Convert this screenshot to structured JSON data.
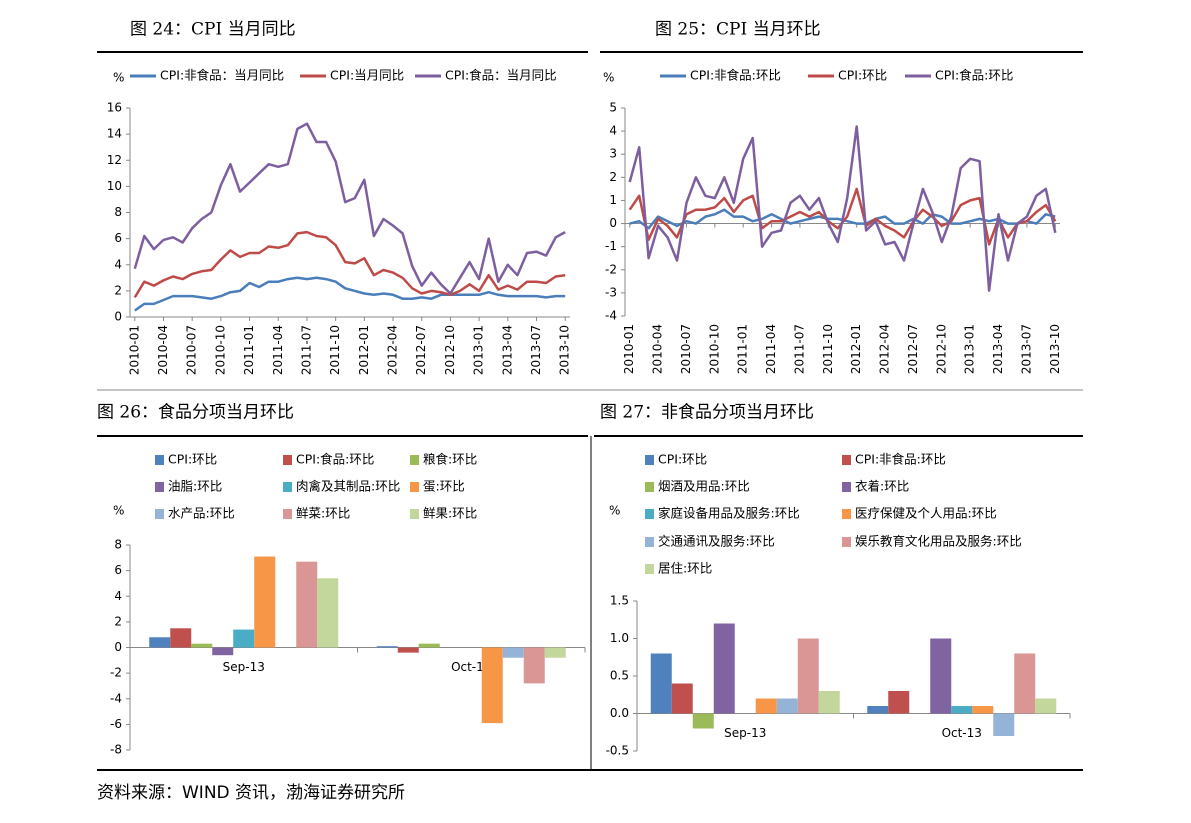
{
  "chart_data": [
    {
      "type": "line",
      "title": "图 24：CPI 当月同比",
      "ylabel": "%",
      "ylim": [
        0,
        16
      ],
      "yticks": [
        0,
        2,
        4,
        6,
        8,
        10,
        12,
        14,
        16
      ],
      "categories": [
        "2010-01",
        null,
        null,
        "2010-04",
        null,
        null,
        "2010-07",
        null,
        null,
        "2010-10",
        null,
        null,
        "2011-01",
        null,
        null,
        "2011-04",
        null,
        null,
        "2011-07",
        null,
        null,
        "2011-10",
        null,
        null,
        "2012-01",
        null,
        null,
        "2012-04",
        null,
        null,
        "2012-07",
        null,
        null,
        "2012-10",
        null,
        null,
        "2013-01",
        null,
        null,
        "2013-04",
        null,
        null,
        "2013-07",
        null,
        null,
        "2013-10"
      ],
      "series": [
        {
          "name": "CPI:非食品：当月同比",
          "color": "#4a7ebb",
          "values": [
            0.5,
            1.0,
            1.0,
            1.3,
            1.6,
            1.6,
            1.6,
            1.5,
            1.4,
            1.6,
            1.9,
            2.0,
            2.6,
            2.3,
            2.7,
            2.7,
            2.9,
            3.0,
            2.9,
            3.0,
            2.9,
            2.7,
            2.2,
            2.0,
            1.8,
            1.7,
            1.8,
            1.7,
            1.4,
            1.4,
            1.5,
            1.4,
            1.7,
            1.7,
            1.7,
            1.7,
            1.7,
            1.9,
            1.7,
            1.6,
            1.6,
            1.6,
            1.6,
            1.5,
            1.6,
            1.6
          ]
        },
        {
          "name": "CPI:当月同比",
          "color": "#be4b48",
          "values": [
            1.5,
            2.7,
            2.4,
            2.8,
            3.1,
            2.9,
            3.3,
            3.5,
            3.6,
            4.4,
            5.1,
            4.6,
            4.9,
            4.9,
            5.4,
            5.3,
            5.5,
            6.4,
            6.5,
            6.2,
            6.1,
            5.5,
            4.2,
            4.1,
            4.5,
            3.2,
            3.6,
            3.4,
            3.0,
            2.2,
            1.8,
            2.0,
            1.9,
            1.7,
            2.0,
            2.5,
            2.0,
            3.2,
            2.1,
            2.4,
            2.1,
            2.7,
            2.7,
            2.6,
            3.1,
            3.2
          ]
        },
        {
          "name": "CPI:食品：当月同比",
          "color": "#7d5fa0",
          "values": [
            3.7,
            6.2,
            5.2,
            5.9,
            6.1,
            5.7,
            6.8,
            7.5,
            8.0,
            10.1,
            11.7,
            9.6,
            10.3,
            11.0,
            11.7,
            11.5,
            11.7,
            14.4,
            14.8,
            13.4,
            13.4,
            11.9,
            8.8,
            9.1,
            10.5,
            6.2,
            7.5,
            7.0,
            6.4,
            3.9,
            2.4,
            3.4,
            2.5,
            1.8,
            3.0,
            4.2,
            2.9,
            6.0,
            2.7,
            4.0,
            3.2,
            4.9,
            5.0,
            4.7,
            6.1,
            6.5
          ]
        }
      ]
    },
    {
      "type": "line",
      "title": "图 25：CPI 当月环比",
      "ylabel": "%",
      "ylim": [
        -4,
        5
      ],
      "yticks": [
        -4,
        -3,
        -2,
        -1,
        0,
        1,
        2,
        3,
        4,
        5
      ],
      "categories": [
        "2010-01",
        null,
        null,
        "2010-04",
        null,
        null,
        "2010-07",
        null,
        null,
        "2010-10",
        null,
        null,
        "2011-01",
        null,
        null,
        "2011-04",
        null,
        null,
        "2011-07",
        null,
        null,
        "2011-10",
        null,
        null,
        "2012-01",
        null,
        null,
        "2012-04",
        null,
        null,
        "2012-07",
        null,
        null,
        "2012-10",
        null,
        null,
        "2013-01",
        null,
        null,
        "2013-04",
        null,
        null,
        "2013-07",
        null,
        null,
        "2013-10"
      ],
      "series": [
        {
          "name": "CPI:非食品:环比",
          "color": "#4a7ebb",
          "values": [
            0.0,
            0.1,
            -0.2,
            0.3,
            0.1,
            -0.1,
            0.1,
            0.0,
            0.3,
            0.4,
            0.6,
            0.3,
            0.3,
            0.1,
            0.2,
            0.4,
            0.2,
            0.0,
            0.1,
            0.2,
            0.3,
            0.2,
            0.2,
            0.1,
            0.0,
            0.0,
            0.2,
            0.3,
            0.0,
            0.0,
            0.2,
            0.0,
            0.4,
            0.3,
            0.0,
            0.0,
            0.1,
            0.2,
            0.1,
            0.2,
            0.0,
            0.0,
            0.1,
            0.0,
            0.4,
            0.3
          ]
        },
        {
          "name": "CPI:环比",
          "color": "#be4b48",
          "values": [
            0.6,
            1.2,
            -0.7,
            0.2,
            -0.1,
            -0.6,
            0.4,
            0.6,
            0.6,
            0.7,
            1.1,
            0.5,
            1.0,
            1.2,
            -0.2,
            0.1,
            0.1,
            0.3,
            0.5,
            0.3,
            0.5,
            0.1,
            -0.2,
            0.3,
            1.5,
            -0.1,
            0.2,
            -0.1,
            -0.3,
            -0.6,
            0.1,
            0.6,
            0.3,
            -0.1,
            0.1,
            0.8,
            1.0,
            1.1,
            -0.9,
            0.2,
            -0.6,
            0.0,
            0.1,
            0.5,
            0.8,
            0.1
          ]
        },
        {
          "name": "CPI:食品:环比",
          "color": "#7d5fa0",
          "values": [
            1.8,
            3.3,
            -1.5,
            -0.1,
            -0.6,
            -1.6,
            0.9,
            2.0,
            1.2,
            1.1,
            2.0,
            0.9,
            2.8,
            3.7,
            -1.0,
            -0.4,
            -0.3,
            0.9,
            1.2,
            0.6,
            1.1,
            0.0,
            -0.8,
            1.1,
            4.2,
            -0.3,
            0.1,
            -0.9,
            -0.8,
            -1.6,
            0.0,
            1.5,
            0.5,
            -0.8,
            0.3,
            2.4,
            2.8,
            2.7,
            -2.9,
            0.4,
            -1.6,
            0.0,
            0.3,
            1.2,
            1.5,
            -0.4
          ]
        }
      ]
    },
    {
      "type": "bar",
      "title": "图 26：食品分项当月环比",
      "ylabel": "%",
      "ylim": [
        -8,
        8
      ],
      "yticks": [
        -8,
        -6,
        -4,
        -2,
        0,
        2,
        4,
        6,
        8
      ],
      "categories": [
        "Sep-13",
        "Oct-13"
      ],
      "series": [
        {
          "name": "CPI:环比",
          "color": "#4f81bd",
          "values": [
            0.8,
            0.1
          ]
        },
        {
          "name": "CPI:食品:环比",
          "color": "#c0504d",
          "values": [
            1.5,
            -0.4
          ]
        },
        {
          "name": "粮食:环比",
          "color": "#9bbb59",
          "values": [
            0.3,
            0.3
          ]
        },
        {
          "name": "油脂:环比",
          "color": "#8064a2",
          "values": [
            -0.6,
            0
          ]
        },
        {
          "name": "肉禽及其制品:环比",
          "color": "#4bacc6",
          "values": [
            1.4,
            0
          ]
        },
        {
          "name": "蛋:环比",
          "color": "#f79646",
          "values": [
            7.1,
            -5.9
          ]
        },
        {
          "name": "水产品:环比",
          "color": "#95b3d7",
          "values": [
            0,
            -0.8
          ]
        },
        {
          "name": "鲜菜:环比",
          "color": "#d99694",
          "values": [
            6.7,
            -2.8
          ]
        },
        {
          "name": "鲜果:环比",
          "color": "#c3d69b",
          "values": [
            5.4,
            -0.8
          ]
        }
      ]
    },
    {
      "type": "bar",
      "title": "图 27：非食品分项当月环比",
      "ylabel": "%",
      "ylim": [
        -0.5,
        1.5
      ],
      "yticks": [
        -0.5,
        {
          "value": 0,
          "label": "0.0"
        },
        0.5,
        {
          "value": 1,
          "label": "1.0"
        },
        1.5
      ],
      "categories": [
        "Sep-13",
        "Oct-13"
      ],
      "series": [
        {
          "name": "CPI:环比",
          "color": "#4f81bd",
          "values": [
            0.8,
            0.1
          ]
        },
        {
          "name": "CPI:非食品:环比",
          "color": "#c0504d",
          "values": [
            0.4,
            0.3
          ]
        },
        {
          "name": "烟酒及用品:环比",
          "color": "#9bbb59",
          "values": [
            -0.2,
            0
          ]
        },
        {
          "name": "衣着:环比",
          "color": "#8064a2",
          "values": [
            1.2,
            1.0
          ]
        },
        {
          "name": "家庭设备用品及服务:环比",
          "color": "#4bacc6",
          "values": [
            0,
            0.1
          ]
        },
        {
          "name": "医疗保健及个人用品:环比",
          "color": "#f79646",
          "values": [
            0.2,
            0.1
          ]
        },
        {
          "name": "交通通讯及服务:环比",
          "color": "#95b3d7",
          "values": [
            0.2,
            -0.3
          ]
        },
        {
          "name": "娱乐教育文化用品及服务:环比",
          "color": "#d99694",
          "values": [
            1.0,
            0.8
          ]
        },
        {
          "name": "居住:环比",
          "color": "#c3d69b",
          "values": [
            0.3,
            0.2
          ]
        }
      ]
    }
  ],
  "source": "资料来源：WIND 资讯，渤海证券研究所"
}
